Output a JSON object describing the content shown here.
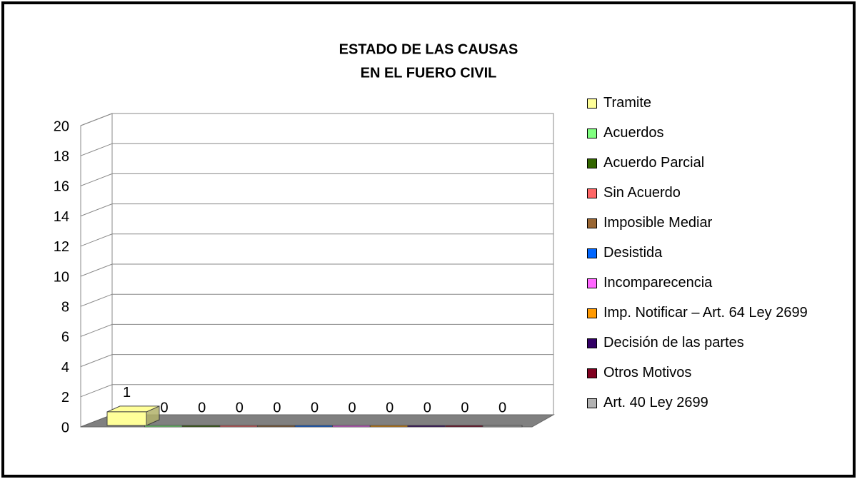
{
  "chart_data": {
    "type": "bar3d",
    "title": [
      "ESTADO DE LAS CAUSAS",
      "EN EL FUERO CIVIL"
    ],
    "categories": [
      null
    ],
    "series": [
      {
        "name": "Tramite",
        "color": "#ffff99",
        "values": [
          1
        ]
      },
      {
        "name": "Acuerdos",
        "color": "#80ff80",
        "values": [
          0
        ]
      },
      {
        "name": "Acuerdo Parcial",
        "color": "#336600",
        "values": [
          0
        ]
      },
      {
        "name": "Sin Acuerdo",
        "color": "#ff6666",
        "values": [
          0
        ]
      },
      {
        "name": "Imposible Mediar",
        "color": "#996633",
        "values": [
          0
        ]
      },
      {
        "name": "Desistida",
        "color": "#0066ff",
        "values": [
          0
        ]
      },
      {
        "name": "Incomparecencia",
        "color": "#ff66ff",
        "values": [
          0
        ]
      },
      {
        "name": "Imp. Notificar – Art. 64 Ley 2699",
        "color": "#ff9900",
        "values": [
          0
        ]
      },
      {
        "name": "Decisión de las partes",
        "color": "#330066",
        "values": [
          0
        ]
      },
      {
        "name": "Otros Motivos",
        "color": "#800020",
        "values": [
          0
        ]
      },
      {
        "name": "Art. 40 Ley 2699",
        "color": "#b2b2b2",
        "values": [
          0
        ]
      }
    ],
    "ylim": [
      0,
      20
    ],
    "yticks": [
      0,
      2,
      4,
      6,
      8,
      10,
      12,
      14,
      16,
      18,
      20
    ],
    "grid": true,
    "legend": "right"
  }
}
